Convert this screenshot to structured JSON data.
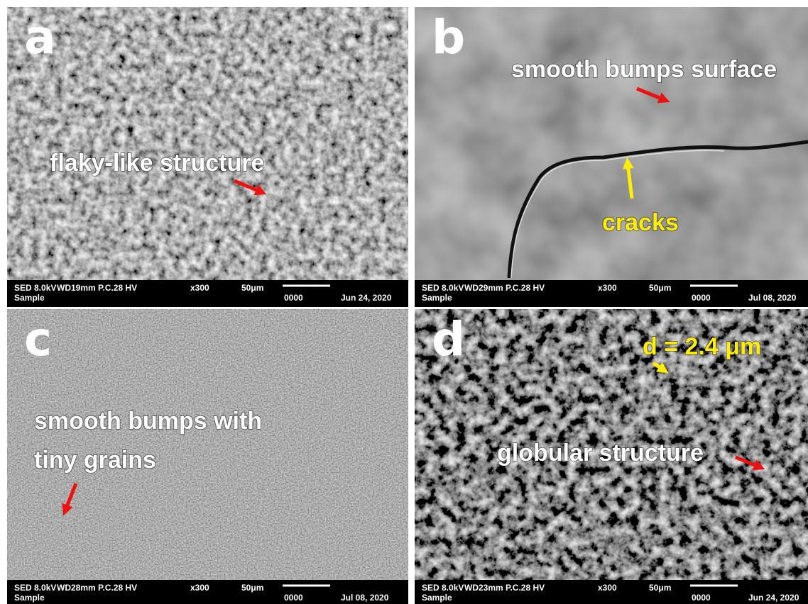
{
  "panels": [
    {
      "label": "a",
      "annotations": [
        "flaky-like structure"
      ],
      "info": {
        "detector": "SED 8.0kV",
        "settings": "WD19mm P.C.28 HV",
        "magnification": "x300",
        "scale": "50μm",
        "sample": "Sample",
        "code": "0000",
        "date": "Jun 24, 2020"
      }
    },
    {
      "label": "b",
      "annotations": [
        "smooth bumps surface",
        "cracks"
      ],
      "info": {
        "detector": "SED 8.0kV",
        "settings": "WD29mm P.C.28 HV",
        "magnification": "x300",
        "scale": "50μm",
        "sample": "Sample",
        "code": "0000",
        "date": "Jul 08, 2020"
      }
    },
    {
      "label": "c",
      "annotations": [
        "smooth bumps with",
        "tiny grains"
      ],
      "info": {
        "detector": "SED 8.0kV",
        "settings": "WD28mm P.C.28 HV",
        "magnification": "x300",
        "scale": "50μm",
        "sample": "Sample",
        "code": "0000",
        "date": "Jul 08, 2020"
      }
    },
    {
      "label": "d",
      "annotations": [
        "d = 2.4 μm",
        "globular structure"
      ],
      "info": {
        "detector": "SED 8.0kV",
        "settings": "WD23mm P.C.28 HV",
        "magnification": "x300",
        "scale": "50μm",
        "sample": "Sample",
        "code": "0000",
        "date": "Jun 24, 2020"
      }
    }
  ]
}
